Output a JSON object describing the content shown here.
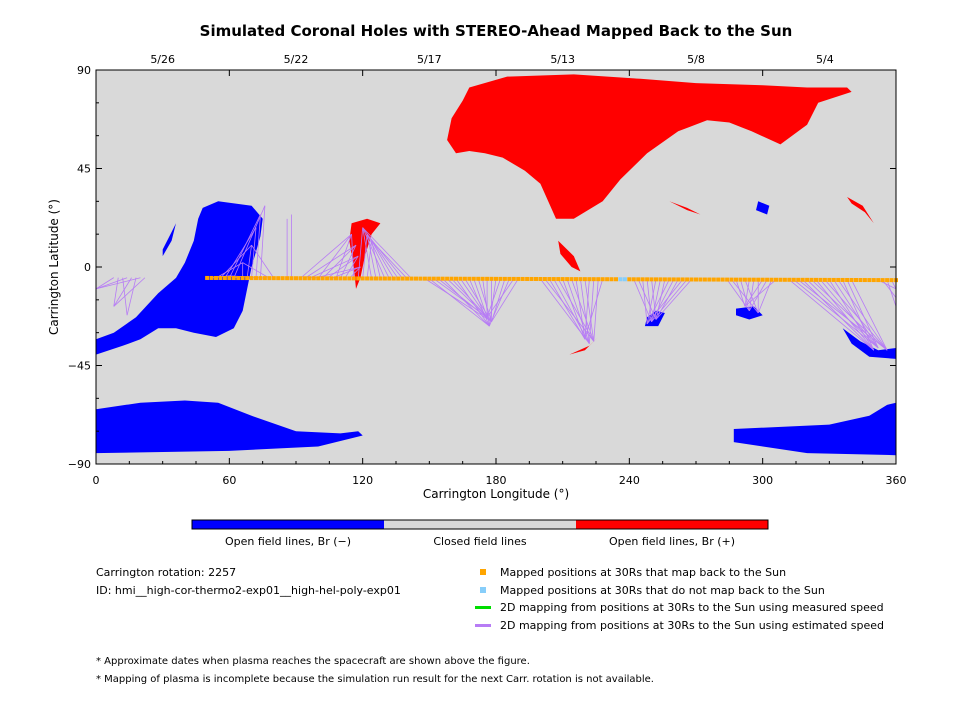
{
  "chart_data": {
    "type": "scatter",
    "title": "Simulated Coronal Holes with STEREO-Ahead Mapped Back to the Sun",
    "xlabel": "Carrington Longitude (°)",
    "ylabel": "Carrington Latitude (°)",
    "xlim": [
      0,
      360
    ],
    "ylim": [
      -90,
      90
    ],
    "x_ticks": [
      0,
      60,
      120,
      180,
      240,
      300,
      360
    ],
    "y_ticks": [
      -90,
      -45,
      0,
      45,
      90
    ],
    "top_axis": {
      "labels": [
        "5/26",
        "5/22",
        "5/17",
        "5/13",
        "5/8",
        "5/4"
      ],
      "positions": [
        30,
        90,
        150,
        210,
        270,
        328
      ]
    },
    "grid": false,
    "background_color": "#d9d9d9",
    "colors": {
      "open_negative": "#0000ff",
      "closed": "#d9d9d9",
      "open_positive": "#ff0000",
      "mapped": "#ffa500",
      "not_mapped": "#87cefa",
      "measured": "#00dd00",
      "estimated": "#b77cf5"
    },
    "coronal_holes": {
      "negative": [
        {
          "points": [
            [
              0,
              -33
            ],
            [
              8,
              -30
            ],
            [
              18,
              -23
            ],
            [
              28,
              -12
            ],
            [
              36,
              -5
            ],
            [
              40,
              2
            ],
            [
              44,
              12
            ],
            [
              46,
              22
            ],
            [
              48,
              27
            ],
            [
              55,
              30
            ],
            [
              70,
              28
            ],
            [
              75,
              22
            ],
            [
              74,
              14
            ],
            [
              70,
              0
            ],
            [
              66,
              -20
            ],
            [
              62,
              -28
            ],
            [
              54,
              -32
            ],
            [
              44,
              -30
            ],
            [
              36,
              -28
            ],
            [
              28,
              -28
            ],
            [
              20,
              -33
            ],
            [
              12,
              -36
            ],
            [
              0,
              -40
            ]
          ]
        },
        {
          "points": [
            [
              0,
              -65
            ],
            [
              20,
              -62
            ],
            [
              40,
              -61
            ],
            [
              55,
              -62
            ],
            [
              70,
              -68
            ],
            [
              90,
              -75
            ],
            [
              110,
              -76
            ],
            [
              118,
              -75
            ],
            [
              120,
              -77
            ],
            [
              100,
              -82
            ],
            [
              60,
              -84
            ],
            [
              0,
              -85
            ]
          ]
        },
        {
          "points": [
            [
              287,
              -74
            ],
            [
              330,
              -72
            ],
            [
              348,
              -68
            ],
            [
              356,
              -63
            ],
            [
              360,
              -62
            ],
            [
              360,
              -86
            ],
            [
              320,
              -85
            ],
            [
              287,
              -80
            ]
          ]
        },
        {
          "points": [
            [
              336,
              -28
            ],
            [
              344,
              -34
            ],
            [
              352,
              -38
            ],
            [
              360,
              -37
            ],
            [
              360,
              -42
            ],
            [
              348,
              -41
            ],
            [
              340,
              -35
            ]
          ]
        },
        {
          "points": [
            [
              248,
              -23
            ],
            [
              252,
              -20
            ],
            [
              256,
              -21
            ],
            [
              253,
              -27
            ],
            [
              247,
              -27
            ]
          ]
        },
        {
          "points": [
            [
              288,
              -19
            ],
            [
              296,
              -18
            ],
            [
              300,
              -22
            ],
            [
              294,
              -24
            ],
            [
              288,
              -22
            ]
          ]
        },
        {
          "points": [
            [
              30,
              8
            ],
            [
              34,
              16
            ],
            [
              36,
              20
            ],
            [
              34,
              12
            ],
            [
              30,
              5
            ]
          ]
        },
        {
          "points": [
            [
              298,
              30
            ],
            [
              303,
              28
            ],
            [
              302,
              24
            ],
            [
              297,
              26
            ]
          ]
        }
      ],
      "positive": [
        {
          "points": [
            [
              168,
              82
            ],
            [
              185,
              87
            ],
            [
              215,
              88
            ],
            [
              245,
              86
            ],
            [
              270,
              84
            ],
            [
              300,
              83
            ],
            [
              320,
              82
            ],
            [
              338,
              82
            ],
            [
              340,
              80
            ],
            [
              325,
              75
            ],
            [
              320,
              65
            ],
            [
              308,
              56
            ],
            [
              295,
              62
            ],
            [
              285,
              66
            ],
            [
              275,
              67
            ],
            [
              262,
              62
            ],
            [
              248,
              52
            ],
            [
              236,
              40
            ],
            [
              228,
              30
            ],
            [
              215,
              22
            ],
            [
              207,
              22
            ],
            [
              200,
              38
            ],
            [
              193,
              44
            ],
            [
              183,
              50
            ],
            [
              175,
              52
            ],
            [
              168,
              53
            ],
            [
              162,
              52
            ],
            [
              158,
              58
            ],
            [
              160,
              68
            ],
            [
              165,
              76
            ]
          ]
        },
        {
          "points": [
            [
              338,
              32
            ],
            [
              345,
              28
            ],
            [
              350,
              20
            ],
            [
              346,
              25
            ],
            [
              340,
              29
            ]
          ]
        },
        {
          "points": [
            [
              258,
              30
            ],
            [
              266,
              27
            ],
            [
              272,
              24
            ],
            [
              266,
              26
            ]
          ]
        },
        {
          "points": [
            [
              115,
              20
            ],
            [
              122,
              22
            ],
            [
              128,
              20
            ],
            [
              124,
              15
            ],
            [
              121,
              5
            ],
            [
              119,
              -5
            ],
            [
              117,
              -10
            ],
            [
              116,
              0
            ],
            [
              114,
              12
            ]
          ]
        },
        {
          "points": [
            [
              208,
              12
            ],
            [
              215,
              5
            ],
            [
              218,
              -2
            ],
            [
              214,
              0
            ],
            [
              209,
              6
            ]
          ]
        },
        {
          "points": [
            [
              213,
              -40
            ],
            [
              222,
              -36
            ],
            [
              226,
              -32
            ],
            [
              220,
              -38
            ]
          ]
        }
      ]
    },
    "mapped_track": {
      "start_lon": 50,
      "end_lon": 360,
      "start_lat": -5,
      "end_lat": -6,
      "not_mapped_lon": [
        235,
        238
      ]
    },
    "estimated_mappings": [
      {
        "from_lon": [
          8,
          22
        ],
        "to": [
          [
            0,
            -10
          ],
          [
            8,
            -18
          ],
          [
            14,
            -22
          ]
        ]
      },
      {
        "from_lon": [
          52,
          80
        ],
        "to": [
          [
            60,
            -4
          ],
          [
            66,
            2
          ],
          [
            70,
            10
          ],
          [
            72,
            18
          ],
          [
            74,
            24
          ],
          [
            76,
            28
          ]
        ]
      },
      {
        "from_lon": [
          86,
          88
        ],
        "to": [
          [
            86,
            22
          ],
          [
            88,
            24
          ]
        ]
      },
      {
        "from_lon": [
          92,
          116
        ],
        "to": [
          [
            115,
            15
          ],
          [
            117,
            10
          ],
          [
            118,
            5
          ],
          [
            119,
            0
          ]
        ]
      },
      {
        "from_lon": [
          118,
          142
        ],
        "to": [
          [
            120,
            18
          ],
          [
            122,
            15
          ],
          [
            124,
            12
          ]
        ]
      },
      {
        "from_lon": [
          148,
          190
        ],
        "to": [
          [
            178,
            -25
          ],
          [
            177,
            -27
          ],
          [
            176,
            -23
          ]
        ]
      },
      {
        "from_lon": [
          200,
          228
        ],
        "to": [
          [
            222,
            -35
          ],
          [
            224,
            -34
          ],
          [
            220,
            -33
          ]
        ]
      },
      {
        "from_lon": [
          242,
          268
        ],
        "to": [
          [
            250,
            -25
          ],
          [
            252,
            -24
          ],
          [
            248,
            -26
          ]
        ]
      },
      {
        "from_lon": [
          284,
          306
        ],
        "to": [
          [
            294,
            -20
          ],
          [
            298,
            -21
          ],
          [
            292,
            -18
          ]
        ]
      },
      {
        "from_lon": [
          312,
          340
        ],
        "to": [
          [
            350,
            -38
          ],
          [
            352,
            -37
          ],
          [
            356,
            -38
          ]
        ]
      },
      {
        "from_lon": [
          352,
          360
        ],
        "to": [
          [
            360,
            -10
          ],
          [
            360,
            -14
          ],
          [
            360,
            -18
          ]
        ]
      }
    ]
  },
  "colorbar": {
    "labels": [
      "Open field lines, Br (−)",
      "Closed field lines",
      "Open field lines, Br (+)"
    ]
  },
  "info": {
    "rotation": "Carrington rotation: 2257",
    "id": "ID: hmi__high-cor-thermo2-exp01__high-hel-poly-exp01"
  },
  "legend": {
    "mapped": "Mapped positions at 30Rs that map back to the Sun",
    "not_mapped": "Mapped positions at 30Rs that do not map back to the Sun",
    "measured": "2D mapping from positions at 30Rs to the Sun using measured speed",
    "estimated": "2D mapping from positions at 30Rs to the Sun using estimated speed"
  },
  "footnotes": [
    "* Approximate dates when plasma reaches the spacecraft are shown above the figure.",
    "* Mapping of plasma is incomplete because the simulation run result for the next Carr. rotation is not available."
  ]
}
